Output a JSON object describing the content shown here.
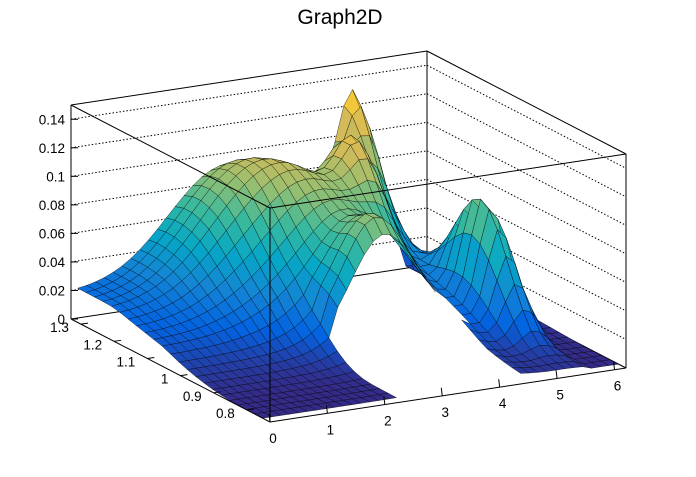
{
  "chart_data": {
    "type": "surface3d",
    "title": "Graph2D",
    "x_ticks": [
      "0",
      "1",
      "2",
      "3",
      "4",
      "5",
      "6"
    ],
    "y_ticks": [
      "0.8",
      "0.9",
      "1",
      "1.1",
      "1.2",
      "1.3"
    ],
    "z_ticks": [
      "0",
      "0.02",
      "0.04",
      "0.06",
      "0.08",
      "0.1",
      "0.12",
      "0.14"
    ],
    "xlim": [
      0,
      6.2
    ],
    "ylim": [
      0.73,
      1.33
    ],
    "zlim": [
      0,
      0.15
    ],
    "palette": "kBird",
    "grid": true,
    "colors": {
      "palette": [
        "#352a87",
        "#0363e1",
        "#1485d4",
        "#06a7c6",
        "#38b99e",
        "#92bf73",
        "#d9ba56",
        "#fcce2e",
        "#f9fb0e"
      ],
      "mesh_lines": "#000000",
      "grid_lines": "#000000",
      "background": "#ffffff"
    }
  }
}
